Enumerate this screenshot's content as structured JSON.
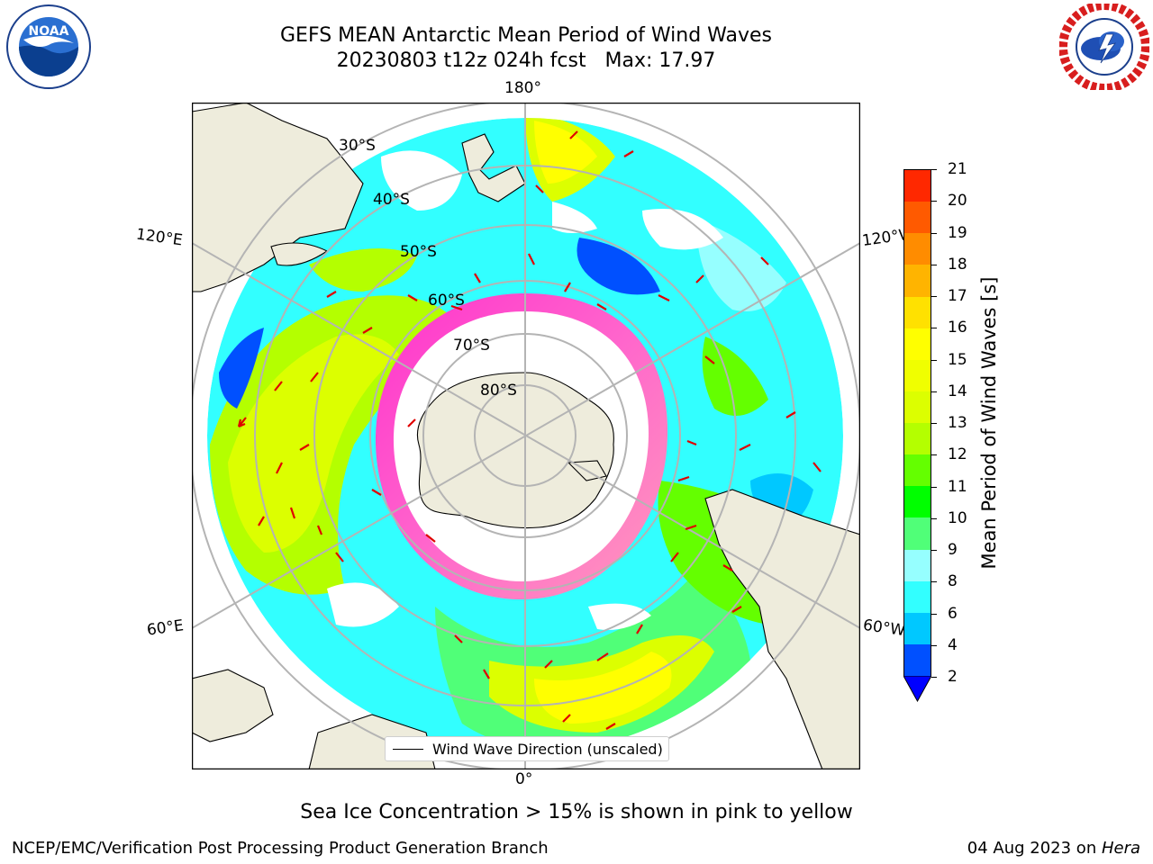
{
  "title": {
    "line1": "GEFS MEAN Antarctic Mean Period of Wind Waves",
    "line2": "20230803 t12z 024h fcst   Max: 17.97"
  },
  "logos": {
    "left": "NOAA",
    "right": "NATIONAL WEATHER SERVICE"
  },
  "map": {
    "projection": "South polar stereographic",
    "lon_labels": {
      "top": "180°",
      "bottom": "0°",
      "upper_left": "120°E",
      "upper_right": "120°W",
      "lower_left": "60°E",
      "lower_right": "60°W"
    },
    "lat_labels": [
      "30°S",
      "40°S",
      "50°S",
      "60°S",
      "70°S",
      "80°S"
    ],
    "legend": "Wind Wave Direction (unscaled)"
  },
  "colorbar": {
    "label": "Mean Period of Wind Waves [s]",
    "ticks": [
      "2",
      "4",
      "6",
      "8",
      "9",
      "10",
      "11",
      "12",
      "13",
      "14",
      "15",
      "16",
      "17",
      "18",
      "19",
      "20",
      "21"
    ],
    "colors": [
      "#0050ff",
      "#00c8ff",
      "#32ffff",
      "#96ffff",
      "#50ff78",
      "#00ff00",
      "#64ff00",
      "#b4ff00",
      "#dcff00",
      "#f0ff00",
      "#ffff00",
      "#ffe100",
      "#ffb400",
      "#ff8c00",
      "#ff5a00",
      "#ff2800"
    ],
    "under_color": "#0000ff"
  },
  "footer": {
    "note": "Sea Ice Concentration > 15% is shown in pink to yellow",
    "left": "NCEP/EMC/Verification Post Processing Product Generation Branch",
    "right_prefix": "04 Aug 2023 on ",
    "right_machine": "Hera"
  }
}
